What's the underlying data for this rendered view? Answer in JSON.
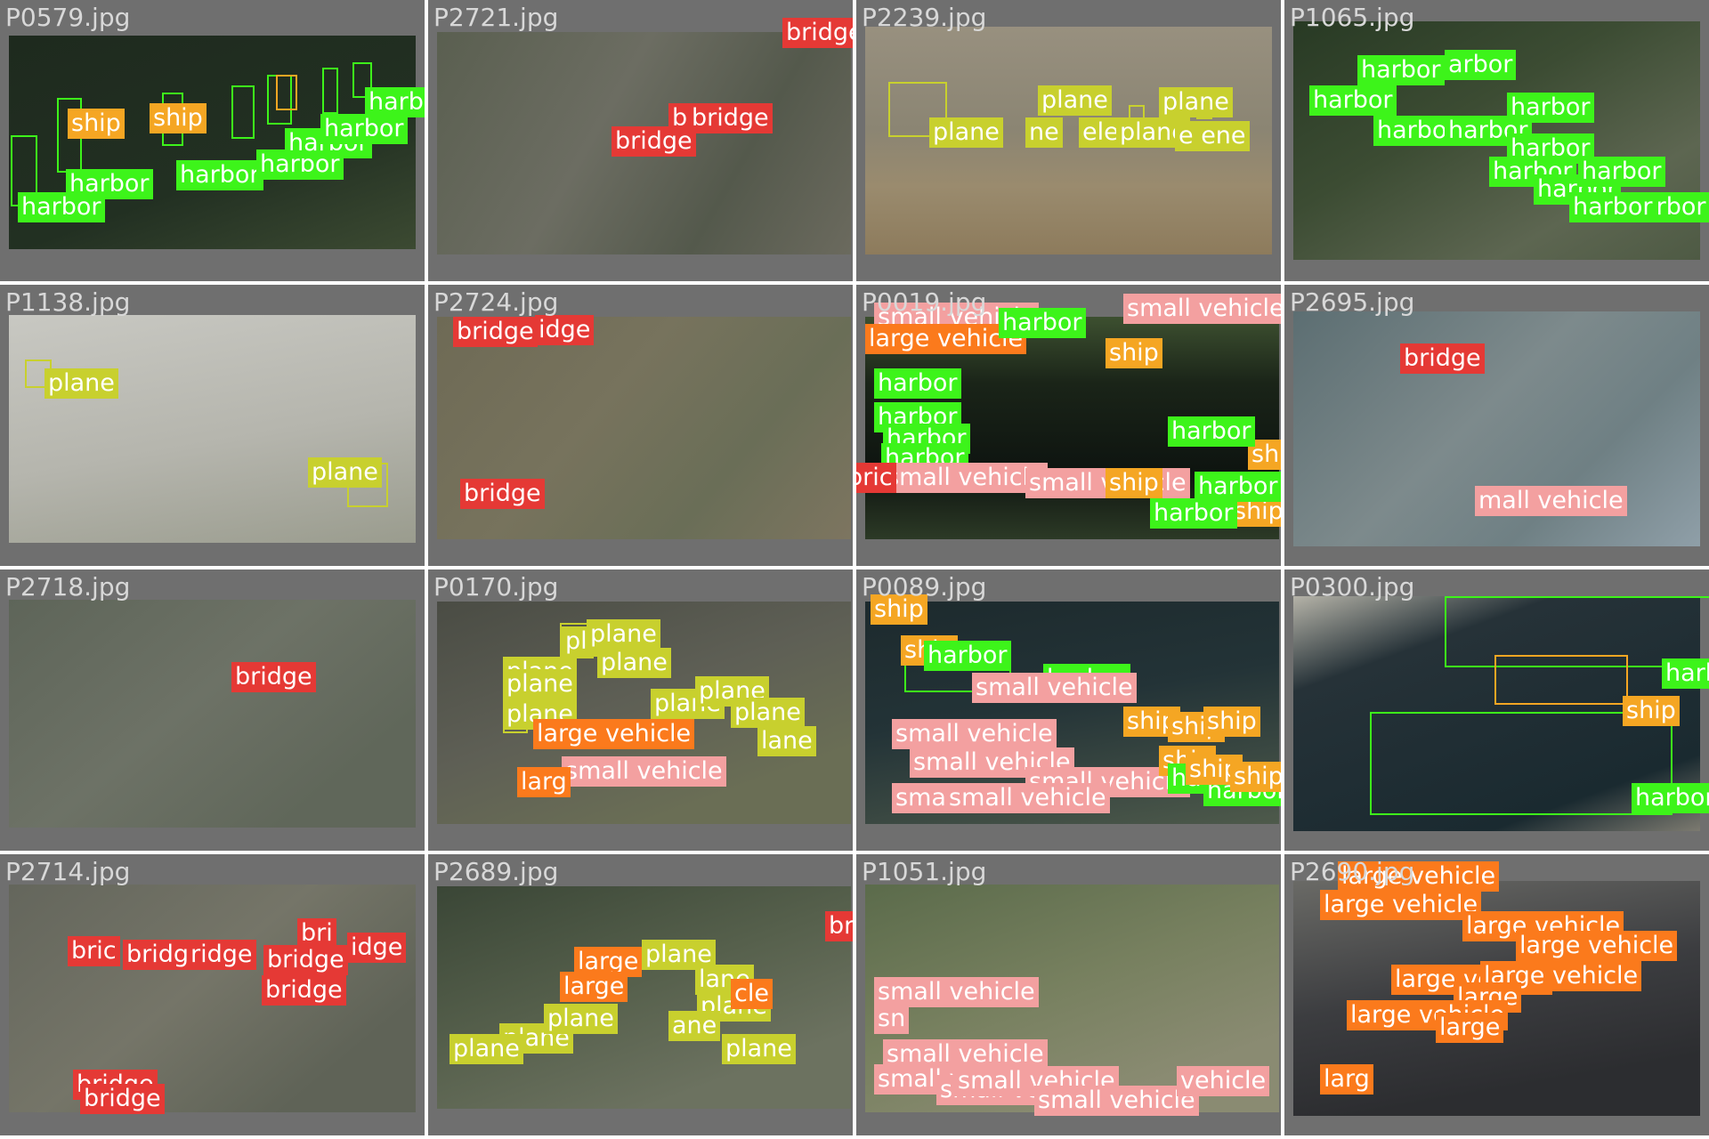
{
  "class_colors": {
    "harbor": "#3df41a",
    "ship": "#f5a623",
    "bridge": "#e53935",
    "plane": "#c8d02e",
    "small vehicle": "#f3a0a0",
    "large vehicle": "#fb7a1c"
  },
  "tiles": [
    {
      "file": "P0579.jpg",
      "labels": [
        {
          "t": "ship",
          "c": "ship"
        },
        {
          "t": "ship",
          "c": "ship"
        },
        {
          "t": "harbor",
          "c": "harbor"
        },
        {
          "t": "harbor",
          "c": "harbor"
        },
        {
          "t": "harbor",
          "c": "harbor"
        },
        {
          "t": "harbor",
          "c": "harbor"
        },
        {
          "t": "harbor",
          "c": "harbor"
        },
        {
          "t": "harbor",
          "c": "harbor"
        },
        {
          "t": "harbor",
          "c": "harbor"
        }
      ]
    },
    {
      "file": "P2721.jpg",
      "labels": [
        {
          "t": "bridge",
          "c": "bridge"
        },
        {
          "t": "bridge",
          "c": "bridge"
        },
        {
          "t": "bridge",
          "c": "bridge"
        },
        {
          "t": "b",
          "c": "bridge"
        }
      ]
    },
    {
      "file": "P2239.jpg",
      "labels": [
        {
          "t": "plane",
          "c": "plane"
        },
        {
          "t": "plane",
          "c": "plane"
        },
        {
          "t": "plane",
          "c": "plane"
        },
        {
          "t": "ne",
          "c": "plane"
        },
        {
          "t": "ele",
          "c": "plane"
        },
        {
          "t": "plane",
          "c": "plane"
        },
        {
          "t": "e ene",
          "c": "plane"
        }
      ]
    },
    {
      "file": "P1065.jpg",
      "labels": [
        {
          "t": "harbor",
          "c": "harbor"
        },
        {
          "t": "harbor",
          "c": "harbor"
        },
        {
          "t": "arbor",
          "c": "harbor"
        },
        {
          "t": "harbor",
          "c": "harbor"
        },
        {
          "t": "harbor",
          "c": "harbor"
        },
        {
          "t": "harbor",
          "c": "harbor"
        },
        {
          "t": "harbor",
          "c": "harbor"
        },
        {
          "t": "harbor",
          "c": "harbor"
        },
        {
          "t": "harbor",
          "c": "harbor"
        },
        {
          "t": "harbor",
          "c": "harbor"
        },
        {
          "t": "harbor",
          "c": "harbor"
        },
        {
          "t": "harbor",
          "c": "harbor"
        }
      ]
    },
    {
      "file": "P1138.jpg",
      "labels": [
        {
          "t": "plane",
          "c": "plane"
        },
        {
          "t": "plane",
          "c": "plane"
        }
      ]
    },
    {
      "file": "P2724.jpg",
      "labels": [
        {
          "t": "bridge",
          "c": "bridge"
        },
        {
          "t": "idge",
          "c": "bridge"
        },
        {
          "t": "bridge",
          "c": "bridge"
        }
      ]
    },
    {
      "file": "P0019.jpg",
      "labels": [
        {
          "t": "small vehicle",
          "c": "small vehicle"
        },
        {
          "t": "small vehicle",
          "c": "small vehicle"
        },
        {
          "t": "large vehicle",
          "c": "large vehicle"
        },
        {
          "t": "harbor",
          "c": "harbor"
        },
        {
          "t": "ship",
          "c": "ship"
        },
        {
          "t": "harbor",
          "c": "harbor"
        },
        {
          "t": "harbor",
          "c": "harbor"
        },
        {
          "t": "harbor",
          "c": "harbor"
        },
        {
          "t": "harbor",
          "c": "harbor"
        },
        {
          "t": "small vehicle",
          "c": "small vehicle"
        },
        {
          "t": "ship",
          "c": "ship"
        },
        {
          "t": "small vehicle",
          "c": "small vehicle"
        },
        {
          "t": "ship",
          "c": "ship"
        },
        {
          "t": "ship",
          "c": "ship"
        },
        {
          "t": "bric",
          "c": "bridge"
        },
        {
          "t": "harbor",
          "c": "harbor"
        },
        {
          "t": "harbor",
          "c": "harbor"
        },
        {
          "t": "harbor",
          "c": "harbor"
        }
      ]
    },
    {
      "file": "P2695.jpg",
      "labels": [
        {
          "t": "bridge",
          "c": "bridge"
        },
        {
          "t": "mall vehicle",
          "c": "small vehicle"
        }
      ]
    },
    {
      "file": "P2718.jpg",
      "labels": [
        {
          "t": "bridge",
          "c": "bridge"
        }
      ]
    },
    {
      "file": "P0170.jpg",
      "labels": [
        {
          "t": "plane",
          "c": "plane"
        },
        {
          "t": "plane",
          "c": "plane"
        },
        {
          "t": "plane",
          "c": "plane"
        },
        {
          "t": "plane",
          "c": "plane"
        },
        {
          "t": "plane",
          "c": "plane"
        },
        {
          "t": "plane",
          "c": "plane"
        },
        {
          "t": "plane",
          "c": "plane"
        },
        {
          "t": "plane",
          "c": "plane"
        },
        {
          "t": "plane",
          "c": "plane"
        },
        {
          "t": "lane",
          "c": "plane"
        },
        {
          "t": "large vehicle",
          "c": "large vehicle"
        },
        {
          "t": "small vehicle",
          "c": "small vehicle"
        },
        {
          "t": "larg",
          "c": "large vehicle"
        }
      ]
    },
    {
      "file": "P0089.jpg",
      "labels": [
        {
          "t": "ship",
          "c": "ship"
        },
        {
          "t": "ship",
          "c": "ship"
        },
        {
          "t": "harbor",
          "c": "harbor"
        },
        {
          "t": "harbor",
          "c": "harbor"
        },
        {
          "t": "ship",
          "c": "ship"
        },
        {
          "t": "small vehicle",
          "c": "small vehicle"
        },
        {
          "t": "small vehicle",
          "c": "small vehicle"
        },
        {
          "t": "small vehicle",
          "c": "small vehicle"
        },
        {
          "t": "small vehicle",
          "c": "small vehicle"
        },
        {
          "t": "small vehicle",
          "c": "small vehicle"
        },
        {
          "t": "small vehicle",
          "c": "small vehicle"
        },
        {
          "t": "ship",
          "c": "ship"
        },
        {
          "t": "ship",
          "c": "ship"
        },
        {
          "t": "ship",
          "c": "ship"
        },
        {
          "t": "harbor",
          "c": "harbor"
        },
        {
          "t": "harbor",
          "c": "harbor"
        },
        {
          "t": "ship",
          "c": "ship"
        },
        {
          "t": "ship",
          "c": "ship"
        }
      ]
    },
    {
      "file": "P0300.jpg",
      "labels": [
        {
          "t": "harb",
          "c": "harbor"
        },
        {
          "t": "ship",
          "c": "ship"
        },
        {
          "t": "harbor",
          "c": "harbor"
        }
      ]
    },
    {
      "file": "P2714.jpg",
      "labels": [
        {
          "t": "bric",
          "c": "bridge"
        },
        {
          "t": "bridge",
          "c": "bridge"
        },
        {
          "t": "ridge",
          "c": "bridge"
        },
        {
          "t": "bri",
          "c": "bridge"
        },
        {
          "t": "bridge",
          "c": "bridge"
        },
        {
          "t": "idge",
          "c": "bridge"
        },
        {
          "t": "bridge",
          "c": "bridge"
        },
        {
          "t": "bridge",
          "c": "bridge"
        },
        {
          "t": "bridge",
          "c": "bridge"
        }
      ]
    },
    {
      "file": "P2689.jpg",
      "labels": [
        {
          "t": "bridge",
          "c": "bridge"
        },
        {
          "t": "large",
          "c": "large vehicle"
        },
        {
          "t": "large",
          "c": "large vehicle"
        },
        {
          "t": "plane",
          "c": "plane"
        },
        {
          "t": "lane",
          "c": "plane"
        },
        {
          "t": "plane",
          "c": "plane"
        },
        {
          "t": "ane",
          "c": "plane"
        },
        {
          "t": "plane",
          "c": "plane"
        },
        {
          "t": "plane",
          "c": "plane"
        },
        {
          "t": "plane",
          "c": "plane"
        },
        {
          "t": "plane",
          "c": "plane"
        },
        {
          "t": "cle",
          "c": "large vehicle"
        }
      ]
    },
    {
      "file": "P1051.jpg",
      "labels": [
        {
          "t": "small vehicle",
          "c": "small vehicle"
        },
        {
          "t": "sn",
          "c": "small vehicle"
        },
        {
          "t": "small vehicle",
          "c": "small vehicle"
        },
        {
          "t": "small vehicle",
          "c": "small vehicle"
        },
        {
          "t": "small vehicle",
          "c": "small vehicle"
        },
        {
          "t": "small vehicle",
          "c": "small vehicle"
        },
        {
          "t": "small vehicle",
          "c": "small vehicle"
        },
        {
          "t": "vehicle",
          "c": "small vehicle"
        }
      ]
    },
    {
      "file": "P2690.jpg",
      "labels": [
        {
          "t": "large vehicle",
          "c": "large vehicle"
        },
        {
          "t": "large vehicle",
          "c": "large vehicle"
        },
        {
          "t": "large vehicle",
          "c": "large vehicle"
        },
        {
          "t": "large vehicle",
          "c": "large vehicle"
        },
        {
          "t": "large vehicle",
          "c": "large vehicle"
        },
        {
          "t": "large vehicle",
          "c": "large vehicle"
        },
        {
          "t": "large",
          "c": "large vehicle"
        },
        {
          "t": "large vehicle",
          "c": "large vehicle"
        },
        {
          "t": "large",
          "c": "large vehicle"
        },
        {
          "t": "larg",
          "c": "large vehicle"
        }
      ]
    }
  ]
}
